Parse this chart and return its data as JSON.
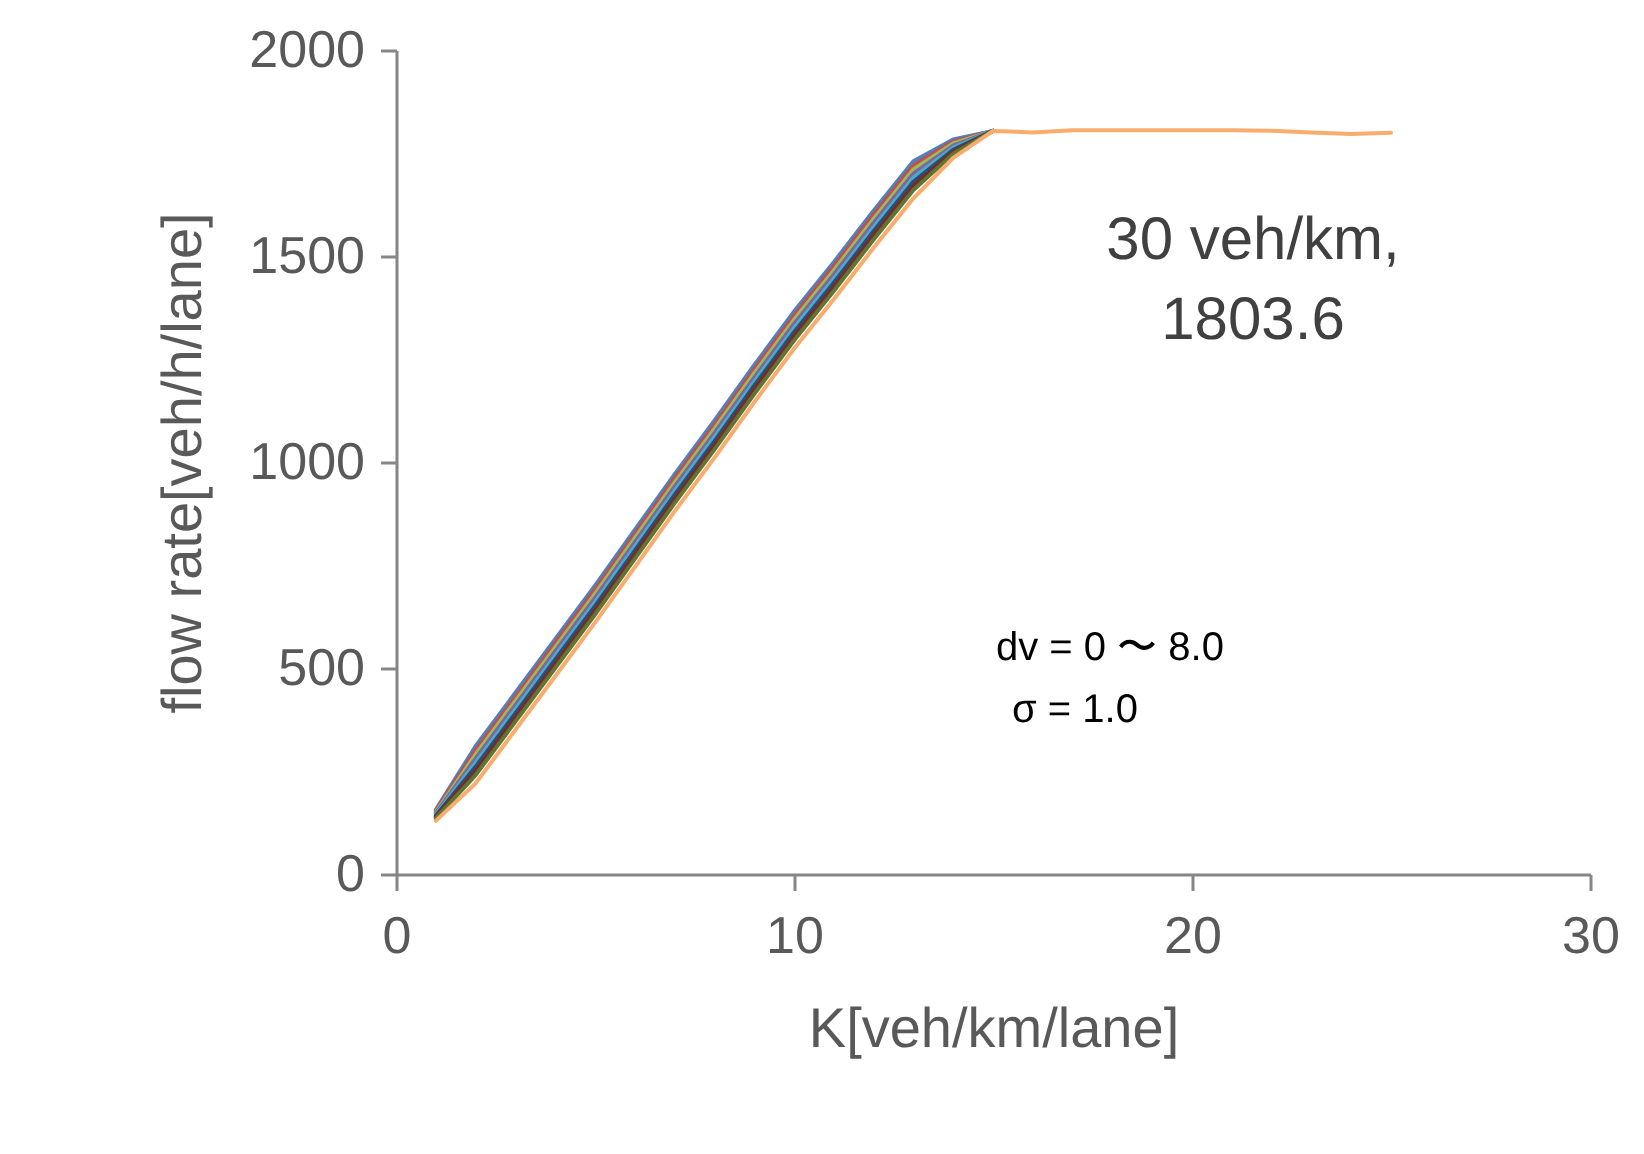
{
  "chart_data": {
    "type": "line",
    "xlabel": "K[veh/km/lane]",
    "ylabel": "flow rate[veh/h/lane]",
    "x": [
      1,
      2,
      3,
      4,
      5,
      6,
      7,
      8,
      9,
      10,
      11,
      12,
      13,
      14,
      15
    ],
    "series": [
      {
        "color": "#4f81bd",
        "values": [
          156,
          310,
          440,
          570,
          700,
          835,
          970,
          1100,
          1235,
          1365,
          1485,
          1610,
          1730,
          1783,
          1803.6
        ]
      },
      {
        "color": "#c0504d",
        "values": [
          153,
          300,
          430,
          560,
          690,
          825,
          960,
          1090,
          1225,
          1355,
          1475,
          1600,
          1720,
          1778,
          1803.6
        ]
      },
      {
        "color": "#9bbb59",
        "values": [
          150,
          290,
          420,
          550,
          680,
          815,
          950,
          1080,
          1215,
          1345,
          1465,
          1590,
          1710,
          1773,
          1803.6
        ]
      },
      {
        "color": "#8064a2",
        "values": [
          147,
          280,
          410,
          540,
          670,
          805,
          940,
          1070,
          1205,
          1335,
          1455,
          1580,
          1700,
          1768,
          1803.6
        ]
      },
      {
        "color": "#4bacc6",
        "values": [
          144,
          270,
          400,
          530,
          660,
          795,
          930,
          1060,
          1195,
          1325,
          1445,
          1570,
          1690,
          1763,
          1803.6
        ]
      },
      {
        "color": "#2c4d75",
        "values": [
          141,
          260,
          390,
          520,
          650,
          785,
          920,
          1050,
          1185,
          1315,
          1435,
          1560,
          1680,
          1758,
          1803.6
        ]
      },
      {
        "color": "#772c2a",
        "values": [
          138,
          250,
          380,
          510,
          640,
          775,
          910,
          1040,
          1175,
          1305,
          1425,
          1550,
          1670,
          1753,
          1803.6
        ]
      },
      {
        "color": "#5f7530",
        "values": [
          135,
          240,
          370,
          500,
          630,
          765,
          900,
          1030,
          1165,
          1295,
          1415,
          1540,
          1660,
          1748,
          1803.6
        ]
      },
      {
        "color": "#f9ac6d",
        "x": [
          1,
          2,
          3,
          4,
          5,
          6,
          7,
          8,
          9,
          10,
          11,
          12,
          13,
          14,
          15,
          16,
          17,
          18,
          19,
          20,
          21,
          22,
          23,
          24,
          25
        ],
        "values": [
          129,
          220,
          350,
          480,
          610,
          745,
          880,
          1010,
          1145,
          1275,
          1395,
          1520,
          1640,
          1738,
          1803.6,
          1800,
          1805,
          1805,
          1805,
          1805,
          1805,
          1804,
          1800,
          1796,
          1799
        ]
      }
    ],
    "xlim": [
      0,
      30
    ],
    "xticks": [
      0,
      10,
      20,
      30
    ],
    "ylim": [
      0,
      2000
    ],
    "yticks": [
      0,
      500,
      1000,
      1500,
      2000
    ],
    "grid": false,
    "legend": false,
    "marker": "none",
    "line_style": "solid",
    "annotations": [
      {
        "text": "30 veh/km,\n1803.6",
        "x": 15,
        "y": 1803.6
      },
      "dv = 0 〜 8.0",
      "σ  = 1.0"
    ]
  }
}
